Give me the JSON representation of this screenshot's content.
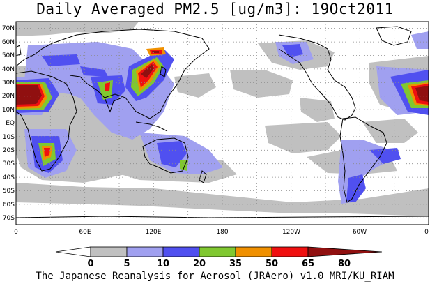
{
  "title": "Daily Averaged PM2.5 [ug/m3]: 19Oct2011",
  "credit": "The Japanese Reanalysis for Aerosol (JRAero) v1.0 MRI/KU_RIAM",
  "map": {
    "lon_labels": [
      "0",
      "60E",
      "120E",
      "180",
      "120W",
      "60W",
      "0"
    ],
    "lat_labels": [
      "70N",
      "60N",
      "50N",
      "40N",
      "30N",
      "20N",
      "10N",
      "EQ",
      "10S",
      "20S",
      "30S",
      "40S",
      "50S",
      "60S",
      "70S"
    ],
    "lon_range": [
      0,
      360
    ],
    "lat_range": [
      -75,
      75
    ],
    "grid": true
  },
  "colorbar": {
    "levels": [
      "0",
      "5",
      "10",
      "20",
      "35",
      "50",
      "65",
      "80"
    ],
    "colors": [
      "#ffffff",
      "#c0c0c0",
      "#a0a0f0",
      "#5050f0",
      "#80c830",
      "#f09000",
      "#f01010",
      "#901010"
    ]
  },
  "palette": {
    "background": "#ffffff",
    "haze": "#c0c0c0",
    "light_blue": "#a0a0f0",
    "blue": "#5050f0",
    "green": "#80c830",
    "orange": "#f09000",
    "red": "#f01010",
    "dark_red": "#901010",
    "coast": "#000000"
  }
}
